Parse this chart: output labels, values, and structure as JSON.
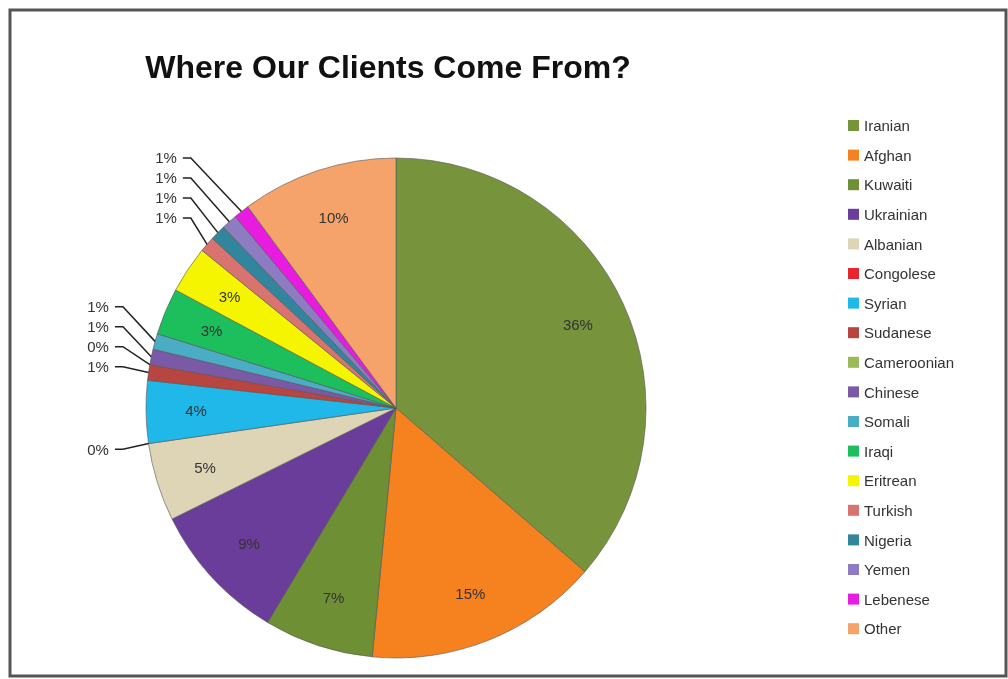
{
  "chart_data": {
    "type": "pie",
    "title": "Where Our Clients Come From?",
    "categories": [
      "Iranian",
      "Afghan",
      "Kuwaiti",
      "Ukrainian",
      "Albanian",
      "Congolese",
      "Syrian",
      "Sudanese",
      "Cameroonian",
      "Chinese",
      "Somali",
      "Iraqi",
      "Eritrean",
      "Turkish",
      "Nigeria",
      "Yemen",
      "Lebenese",
      "Other"
    ],
    "values": [
      36,
      15,
      7,
      9,
      5,
      0,
      4,
      1,
      0,
      1,
      1,
      3,
      3,
      1,
      1,
      1,
      1,
      10
    ],
    "colors": [
      "#77933c",
      "#f5821f",
      "#6f8f35",
      "#6a3d9a",
      "#ddd5b5",
      "#e6262a",
      "#1fb8e8",
      "#b8453f",
      "#9bbb59",
      "#7a5aa6",
      "#4bacc6",
      "#1cbf5b",
      "#f5f500",
      "#d9736f",
      "#31859c",
      "#8e7cc3",
      "#e81ce0",
      "#f5a36b"
    ],
    "value_labels": [
      "36%",
      "15%",
      "7%",
      "9%",
      "5%",
      "0%",
      "4%",
      "1%",
      "0%",
      "1%",
      "1%",
      "3%",
      "3%",
      "1%",
      "1%",
      "1%",
      "1%",
      "10%"
    ],
    "legend": "right"
  }
}
